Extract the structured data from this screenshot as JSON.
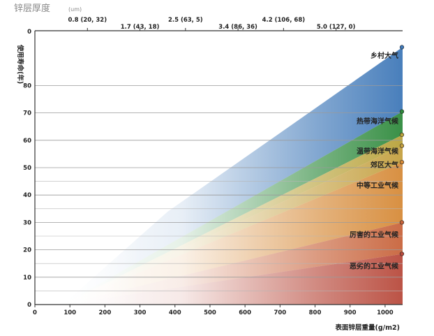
{
  "chart_data": {
    "type": "area",
    "title": "锌层厚度",
    "title_unit": "(um)",
    "ylabel": "使用寿命(年)",
    "xlabel": "表面锌层重量(g/m2)",
    "xlim": [
      0,
      1050
    ],
    "ylim": [
      0,
      100
    ],
    "x_ticks": [
      0,
      100,
      200,
      300,
      400,
      500,
      600,
      700,
      800,
      900,
      1000
    ],
    "y_ticks": [
      0,
      10,
      20,
      30,
      40,
      50,
      60,
      70,
      80
    ],
    "top_zero_label": "0",
    "top_ticks": [
      {
        "x": 150,
        "label": "0.8 (20, 32)",
        "row": 1
      },
      {
        "x": 300,
        "label": "1.7 (43, 18)",
        "row": 2
      },
      {
        "x": 430,
        "label": "2.5 (63, 5)",
        "row": 1
      },
      {
        "x": 580,
        "label": "3.4 (86, 36)",
        "row": 2
      },
      {
        "x": 710,
        "label": "4.2 (106, 68)",
        "row": 1
      },
      {
        "x": 860,
        "label": "5.0 (127, 0)",
        "row": 2
      }
    ],
    "series": [
      {
        "name": "乡村大气",
        "end_value": 94,
        "color": "#3f78b8",
        "label_y": 91
      },
      {
        "name": "热带海洋气候",
        "end_value": 70.5,
        "color": "#2f8a3d",
        "label_y": 67
      },
      {
        "name": "温带海洋气候",
        "end_value": 62,
        "color": "#b8a23a",
        "label_y": 56
      },
      {
        "name": "郊区大气",
        "end_value": 58,
        "color": "#c4a040",
        "label_y": 51
      },
      {
        "name": "中等工业气候",
        "end_value": 52,
        "color": "#d68a38",
        "label_y": 43.5
      },
      {
        "name": "厉害的工业气候",
        "end_value": 30,
        "color": "#c8643c",
        "label_y": 25.5
      },
      {
        "name": "恶劣的工业气候",
        "end_value": 18.5,
        "color": "#b84a3c",
        "label_y": 14
      }
    ]
  }
}
